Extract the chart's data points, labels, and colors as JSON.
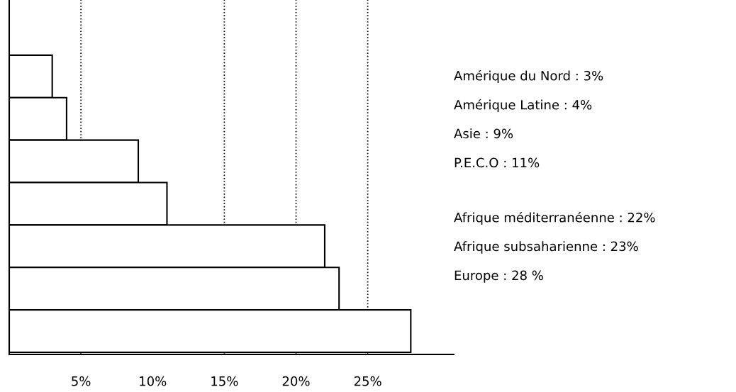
{
  "chart_data": {
    "type": "bar",
    "orientation": "horizontal",
    "categories": [
      null,
      null,
      null,
      null,
      null,
      null,
      null
    ],
    "values": [
      3,
      4,
      9,
      11,
      22,
      23,
      28
    ],
    "color": "#ffffff",
    "xlim": [
      0,
      31
    ],
    "xticks": [
      {
        "value": 5,
        "label": "5%"
      },
      {
        "value": 10,
        "label": "10%"
      },
      {
        "value": 15,
        "label": "15%"
      },
      {
        "value": 20,
        "label": "20%"
      },
      {
        "value": 25,
        "label": "25%"
      }
    ],
    "ref_lines": [
      {
        "axis": "x",
        "value": 5,
        "color": "#000000",
        "line_style": "dotted"
      },
      {
        "axis": "x",
        "value": 15,
        "color": "#000000",
        "line_style": "dotted"
      },
      {
        "axis": "x",
        "value": 20,
        "color": "#000000",
        "line_style": "dotted"
      },
      {
        "axis": "x",
        "value": 25,
        "color": "#000000",
        "line_style": "dotted"
      }
    ],
    "annotations": [
      "Amérique du Nord : 3%",
      "Amérique Latine : 4%",
      "Asie : 9%",
      "P.E.C.O : 11%",
      "Afrique méditerranéenne : 22%",
      "Afrique subsaharienne : 23%",
      "Europe : 28 %"
    ],
    "grid": false,
    "legend": false
  }
}
